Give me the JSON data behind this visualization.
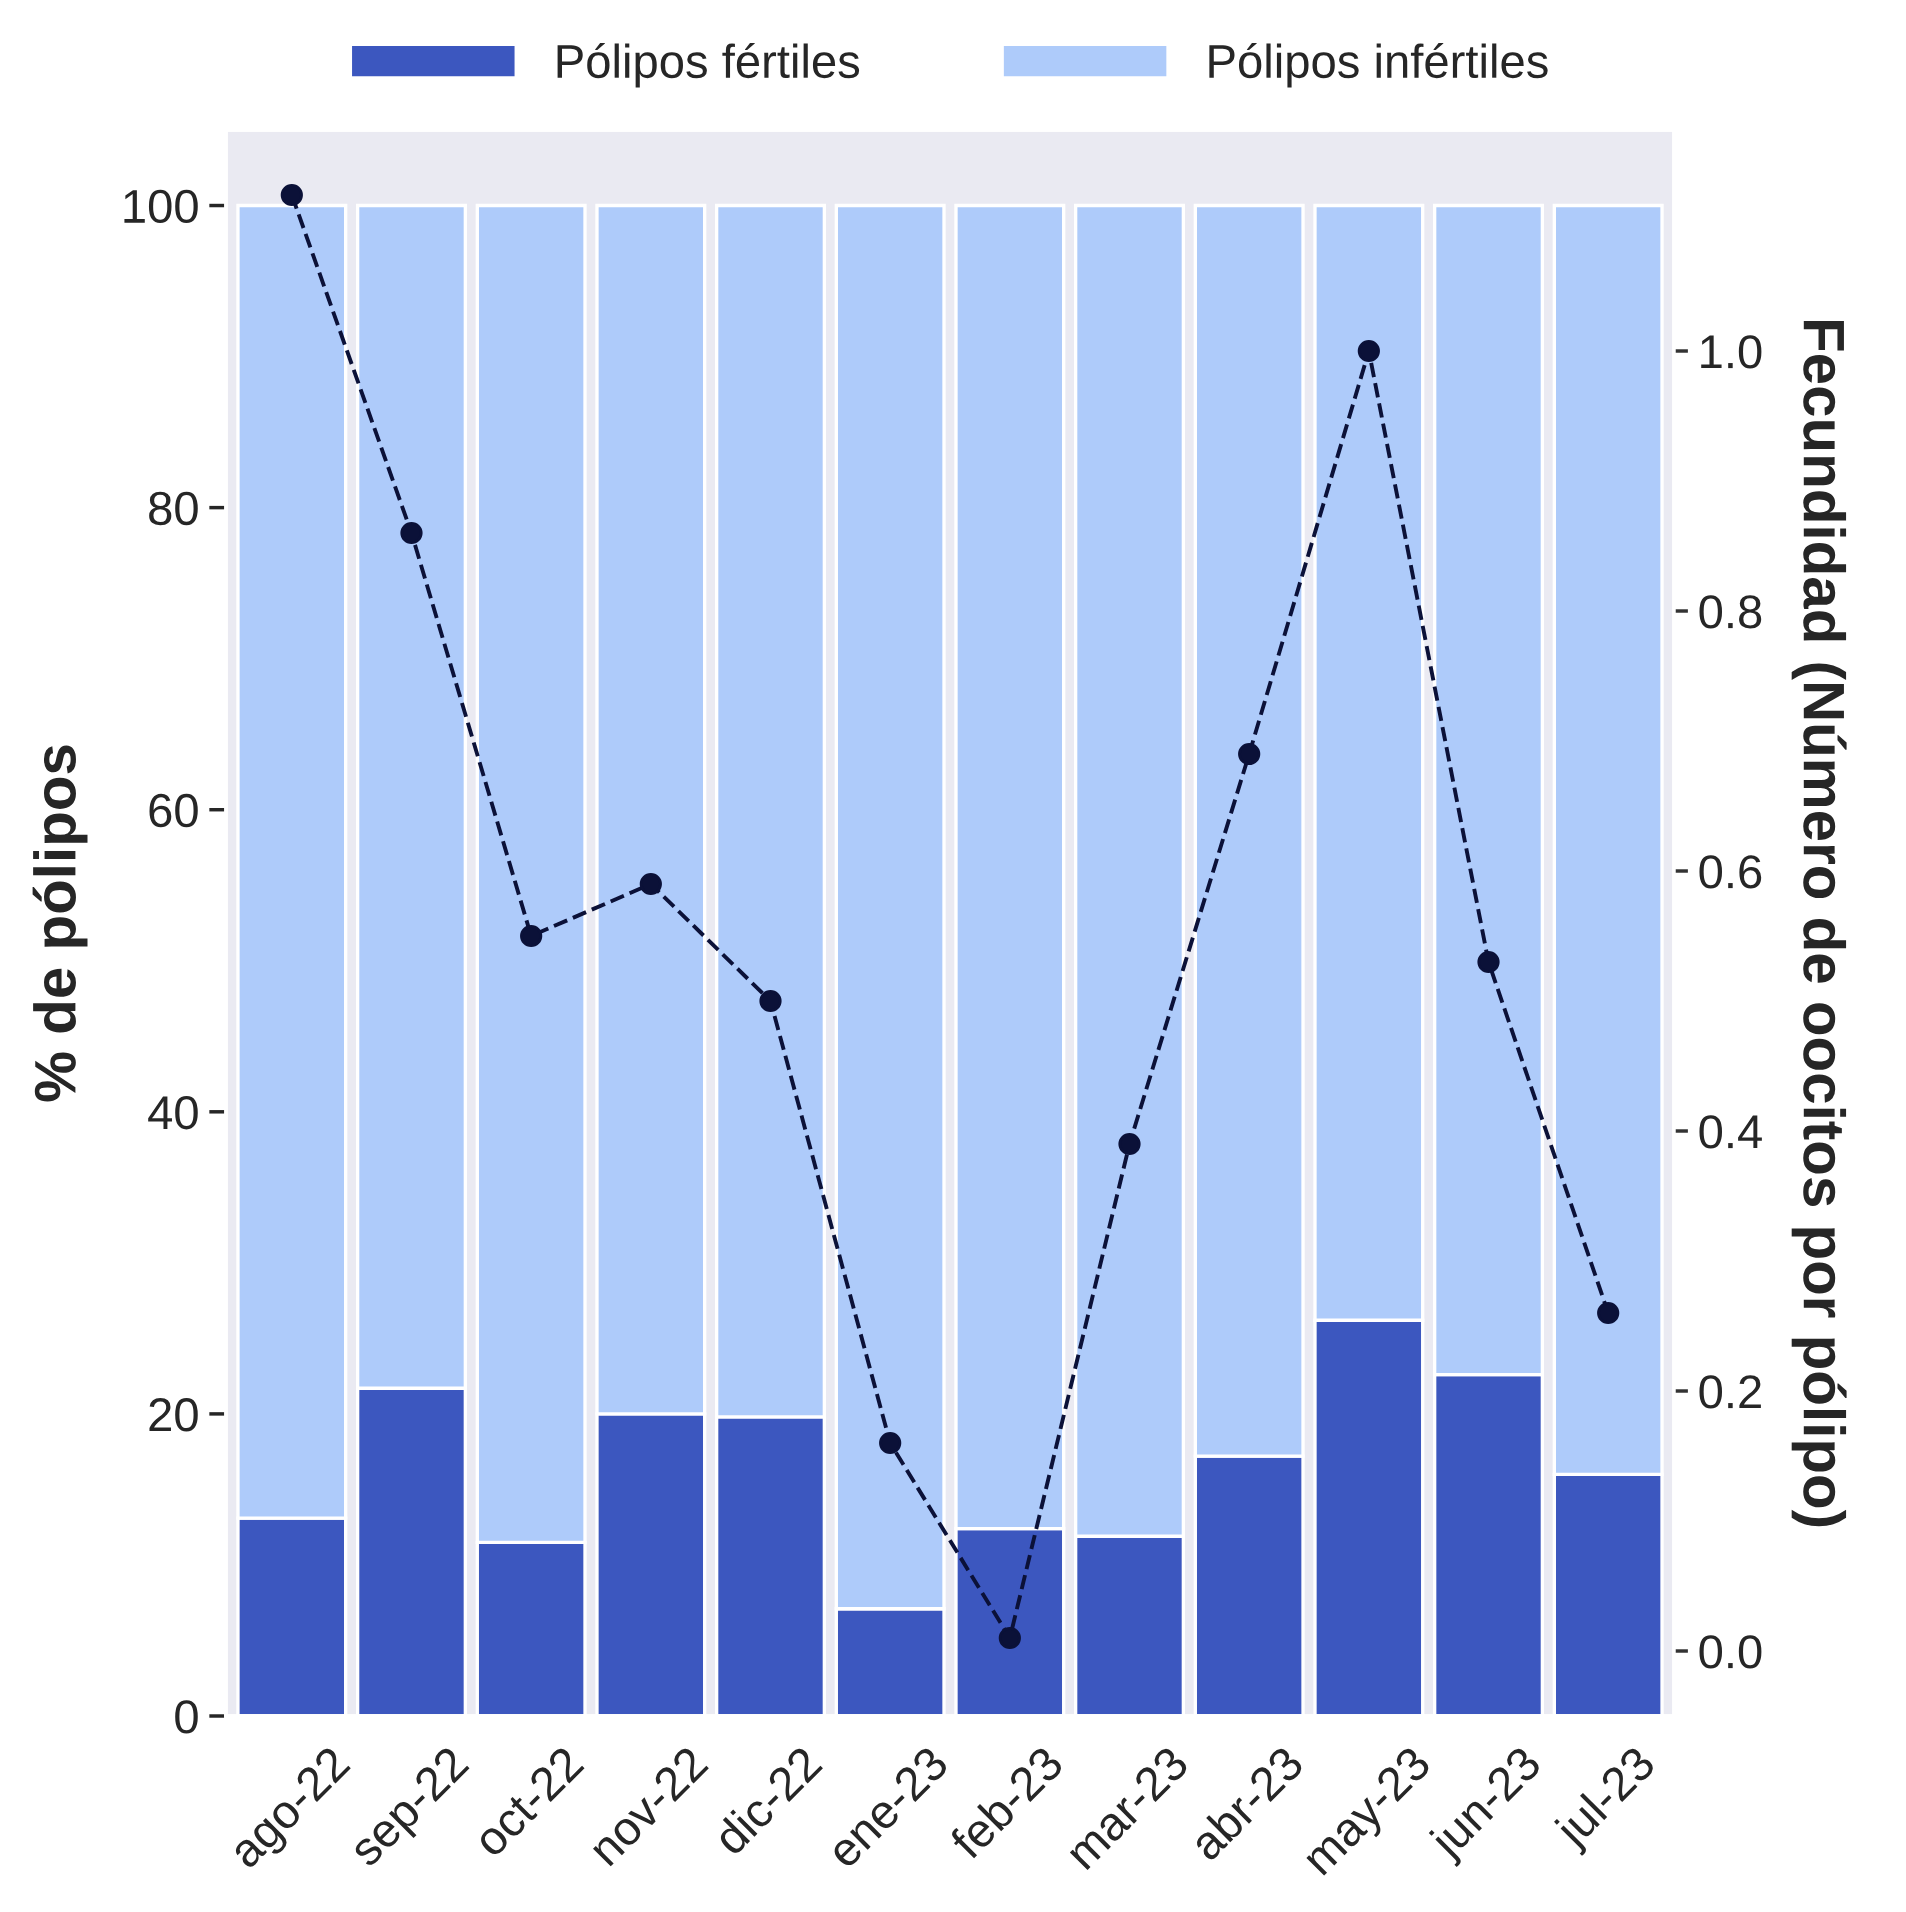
{
  "chart_data": {
    "type": "bar",
    "stacked": true,
    "categories": [
      "ago-22",
      "sep-22",
      "oct-22",
      "nov-22",
      "dic-22",
      "ene-23",
      "feb-23",
      "mar-23",
      "abr-23",
      "may-23",
      "jun-23",
      "jul-23"
    ],
    "series": [
      {
        "name": "Pólipos fértiles",
        "color": "#3c57bf",
        "values": [
          13.1,
          21.7,
          11.5,
          20.0,
          19.8,
          7.1,
          12.4,
          11.9,
          17.2,
          26.2,
          22.6,
          16.0
        ]
      },
      {
        "name": "Pólipos infértiles",
        "color": "#aecbfa",
        "values": [
          86.9,
          78.3,
          88.5,
          80.0,
          80.2,
          92.9,
          87.6,
          88.1,
          82.8,
          73.8,
          77.4,
          84.0
        ]
      },
      {
        "type": "line",
        "axis": "y2",
        "color": "#0b1138",
        "marker": "circle",
        "line_style": "dashed",
        "values": [
          1.12,
          0.86,
          0.55,
          0.59,
          0.5,
          0.16,
          0.01,
          0.39,
          0.69,
          1.0,
          0.53,
          0.26
        ]
      }
    ],
    "ylabel": "% de pólipos",
    "y2label": "Fecundidad (Número de oocitos por pólipo)",
    "ylim": [
      0,
      105
    ],
    "yticks": [
      0,
      20,
      40,
      60,
      80,
      100
    ],
    "y2lim": [
      -0.05,
      1.17
    ],
    "y2ticks": [
      {
        "value": 0,
        "label": "0.0"
      },
      0.2,
      0.4,
      0.6,
      0.8,
      {
        "value": 1,
        "label": "1.0"
      }
    ],
    "grid": false,
    "legend": "top"
  }
}
